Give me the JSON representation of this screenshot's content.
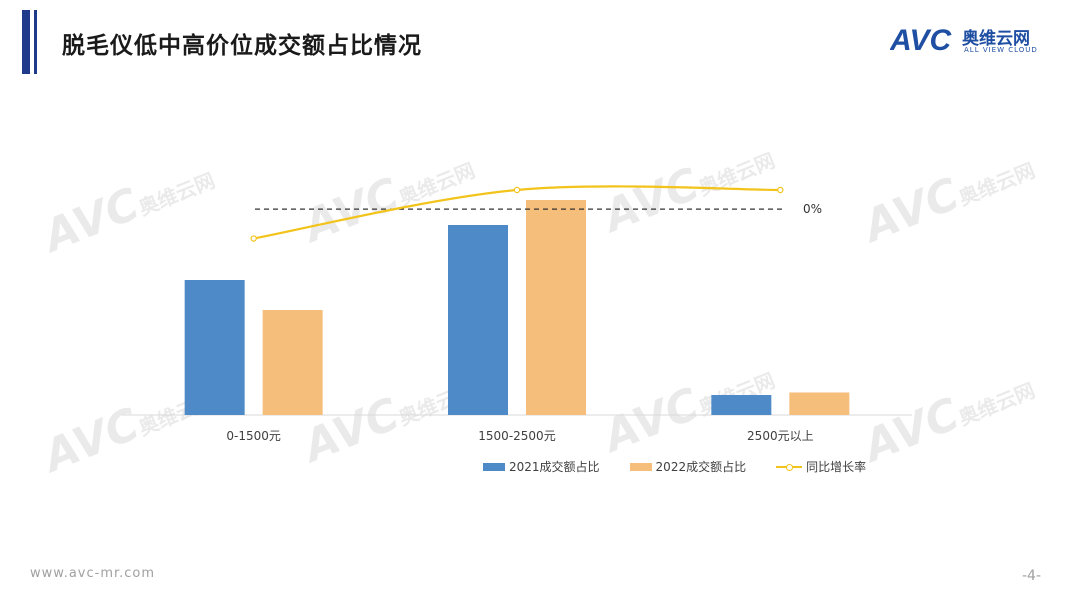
{
  "header": {
    "title": "脱毛仪低中高价位成交额占比情况",
    "logo_en": "AVC",
    "logo_cn": "奥维云网",
    "logo_tagline": "ALL VIEW CLOUD"
  },
  "footer": {
    "url": "www.avc-mr.com",
    "page": "-4-"
  },
  "colors": {
    "series_2021": "#4e8ac8",
    "series_2022": "#f5be7a",
    "growth_line": "#f2c31a",
    "brand": "#1f4fa3"
  },
  "chart_data": {
    "type": "bar",
    "categories": [
      "0-1500元",
      "1500-2500元",
      "2500元以上"
    ],
    "series": [
      {
        "name": "2021成交额占比",
        "type": "bar",
        "values": [
          0.27,
          0.38,
          0.04
        ]
      },
      {
        "name": "2022成交额占比",
        "type": "bar",
        "values": [
          0.21,
          0.43,
          0.045
        ]
      },
      {
        "name": "同比增长率",
        "type": "line",
        "smooth": true,
        "secondary_axis": true,
        "values": [
          -0.2,
          0.13,
          0.13
        ]
      }
    ],
    "reference_line": {
      "value": 0,
      "label": "0%"
    },
    "ylim": [
      0,
      0.5
    ],
    "y2lim": [
      -1.4,
      0.3
    ],
    "gridlines": false,
    "legend": "bottom"
  }
}
